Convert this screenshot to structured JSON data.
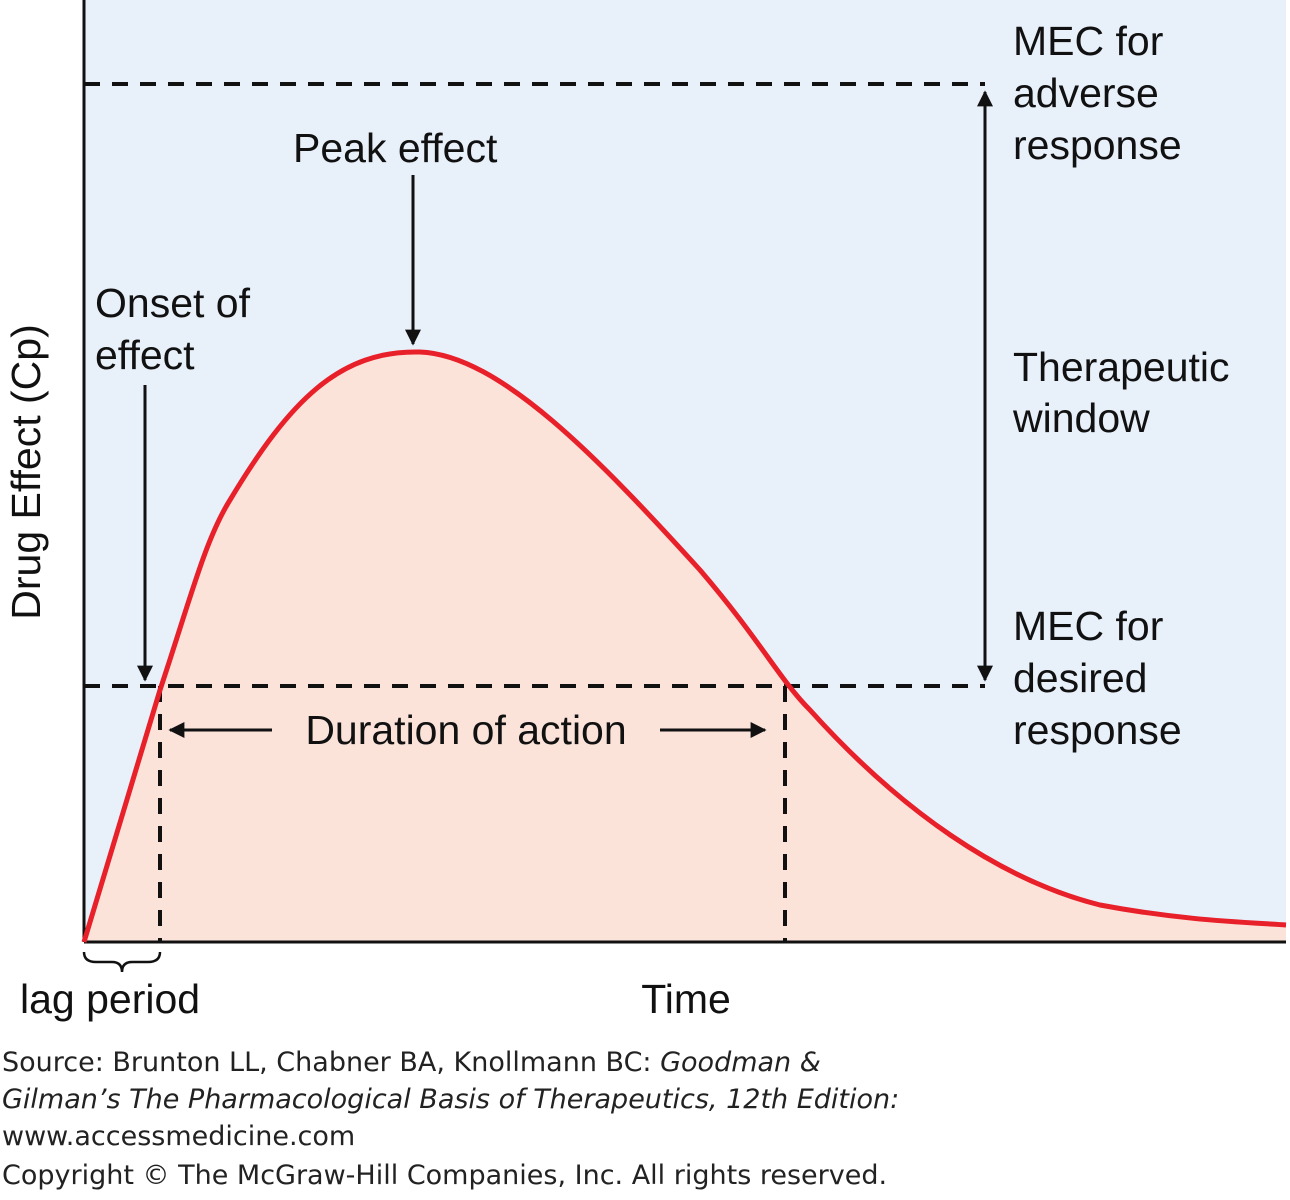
{
  "labels": {
    "peak_effect": "Peak effect",
    "onset_line1": "Onset of",
    "onset_line2": "effect",
    "mec_adverse_line1": "MEC for",
    "mec_adverse_line2": "adverse",
    "mec_adverse_line3": "response",
    "therapeutic_line1": "Therapeutic",
    "therapeutic_line2": "window",
    "mec_desired_line1": "MEC for",
    "mec_desired_line2": "desired",
    "mec_desired_line3": "response",
    "duration": "Duration of action",
    "lag_period": "lag period",
    "y_axis": "Drug Effect (Cp)",
    "x_axis": "Time"
  },
  "source": {
    "prefix": "Source: Brunton LL, Chabner BA, Knollmann BC: ",
    "title_line1": "Goodman &",
    "title_line2": "Gilman’s The Pharmacological Basis of Therapeutics, 12th Edition:",
    "url": "www.accessmedicine.com",
    "copyright": "Copyright © The McGraw-Hill Companies, Inc. All rights reserved."
  },
  "colors": {
    "background": "#e8f0fa",
    "curve": "#e8202a",
    "curve_fill": "#fbe3da",
    "lines": "#111111"
  }
}
